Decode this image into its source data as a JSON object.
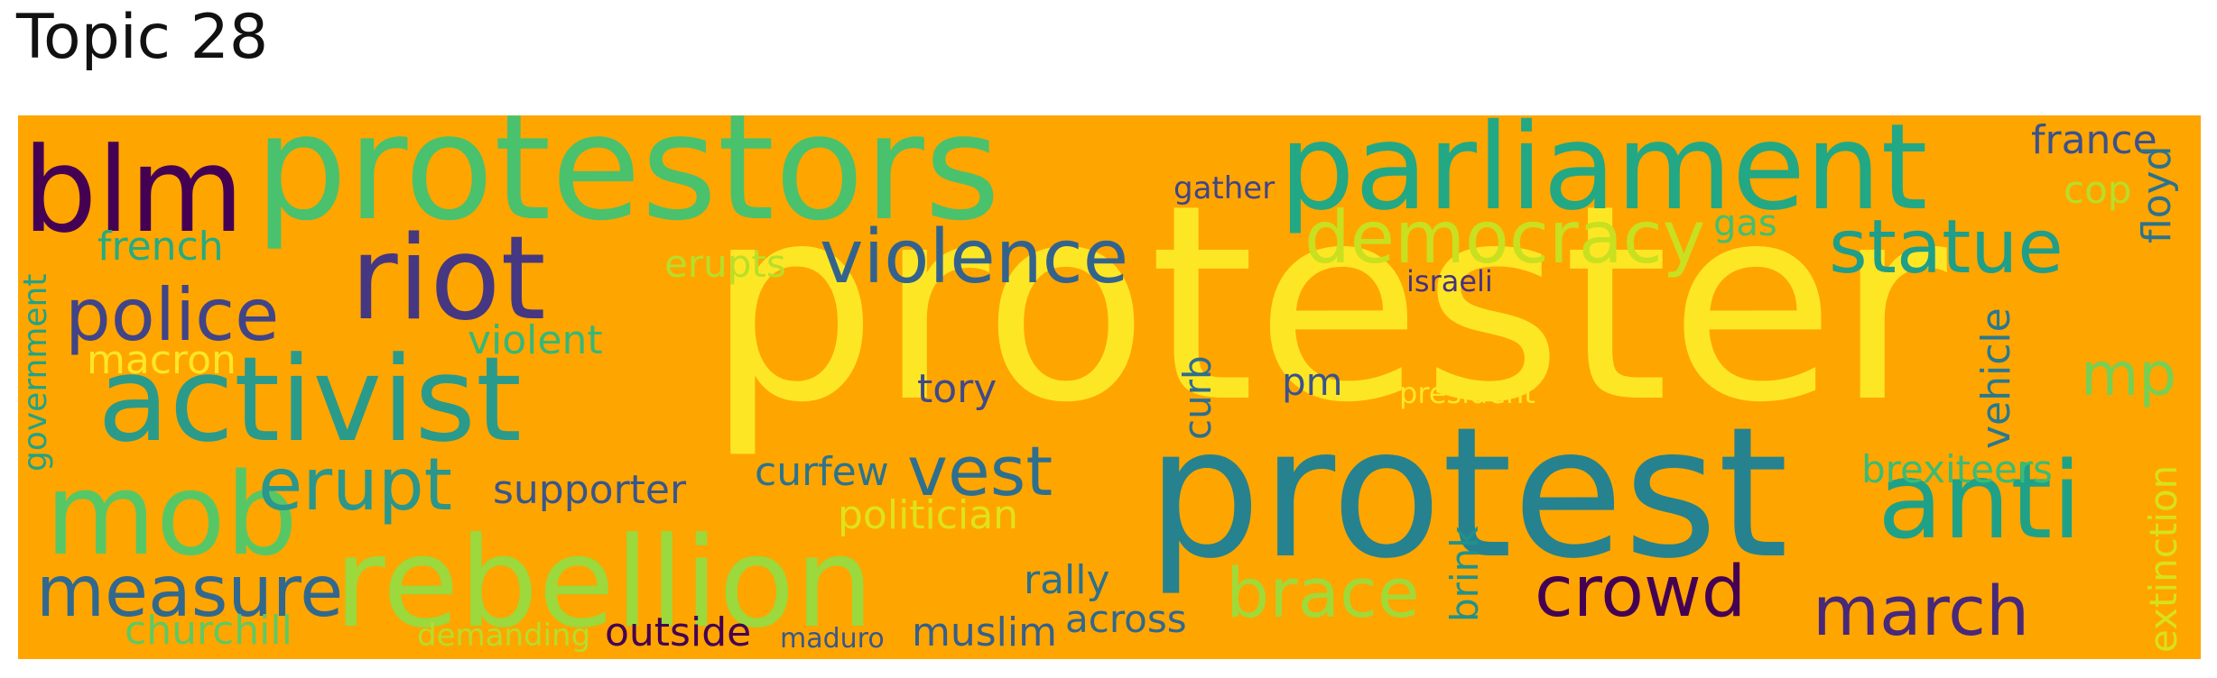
{
  "title": "Topic 28",
  "background": "#FFA500",
  "words": [
    {
      "text": "protester",
      "color": "#FDE725"
    },
    {
      "text": "protest",
      "color": "#26828E"
    },
    {
      "text": "protestors",
      "color": "#4AC16D"
    },
    {
      "text": "parliament",
      "color": "#22A884"
    },
    {
      "text": "blm",
      "color": "#440154"
    },
    {
      "text": "activist",
      "color": "#2A9A8B"
    },
    {
      "text": "riot",
      "color": "#453781"
    },
    {
      "text": "rebellion",
      "color": "#9BD93C"
    },
    {
      "text": "mob",
      "color": "#57C766"
    },
    {
      "text": "anti",
      "color": "#1FA187"
    },
    {
      "text": "violence",
      "color": "#33638D"
    },
    {
      "text": "police",
      "color": "#414487"
    },
    {
      "text": "democracy",
      "color": "#C8E020"
    },
    {
      "text": "statue",
      "color": "#1F9E89"
    },
    {
      "text": "erupt",
      "color": "#2A968C"
    },
    {
      "text": "measure",
      "color": "#31688E"
    },
    {
      "text": "crowd",
      "color": "#440154"
    },
    {
      "text": "march",
      "color": "#482878"
    },
    {
      "text": "vest",
      "color": "#2E6F8E"
    },
    {
      "text": "brace",
      "color": "#A0DA39"
    },
    {
      "text": "mp",
      "color": "#75D054"
    },
    {
      "text": "france",
      "color": "#3B528B"
    },
    {
      "text": "french",
      "color": "#25AB82"
    },
    {
      "text": "violent",
      "color": "#35B779"
    },
    {
      "text": "macron",
      "color": "#FDE725"
    },
    {
      "text": "supporter",
      "color": "#39568C"
    },
    {
      "text": "curfew",
      "color": "#2C738E"
    },
    {
      "text": "politician",
      "color": "#DFE318"
    },
    {
      "text": "tory",
      "color": "#3E4A89"
    },
    {
      "text": "pm",
      "color": "#3B528B"
    },
    {
      "text": "rally",
      "color": "#2D708E"
    },
    {
      "text": "across",
      "color": "#31688E"
    },
    {
      "text": "muslim",
      "color": "#355F8D"
    },
    {
      "text": "outside",
      "color": "#440154"
    },
    {
      "text": "maduro",
      "color": "#38588C"
    },
    {
      "text": "churchill",
      "color": "#5EC962"
    },
    {
      "text": "demanding",
      "color": "#B5DE2B"
    },
    {
      "text": "brexiteers",
      "color": "#3BBB75"
    },
    {
      "text": "erupts",
      "color": "#B8DE29"
    },
    {
      "text": "gather",
      "color": "#414487"
    },
    {
      "text": "israeli",
      "color": "#46327E"
    },
    {
      "text": "president",
      "color": "#FDE725"
    },
    {
      "text": "gas",
      "color": "#43BF71"
    },
    {
      "text": "cop",
      "color": "#B8DE29"
    },
    {
      "text": "floyd",
      "color": "#2C728E"
    },
    {
      "text": "vehicle",
      "color": "#2A788E"
    },
    {
      "text": "extinction",
      "color": "#D8E219"
    },
    {
      "text": "government",
      "color": "#20A386"
    },
    {
      "text": "curb",
      "color": "#2E6E8E"
    },
    {
      "text": "brink",
      "color": "#21918C"
    }
  ]
}
